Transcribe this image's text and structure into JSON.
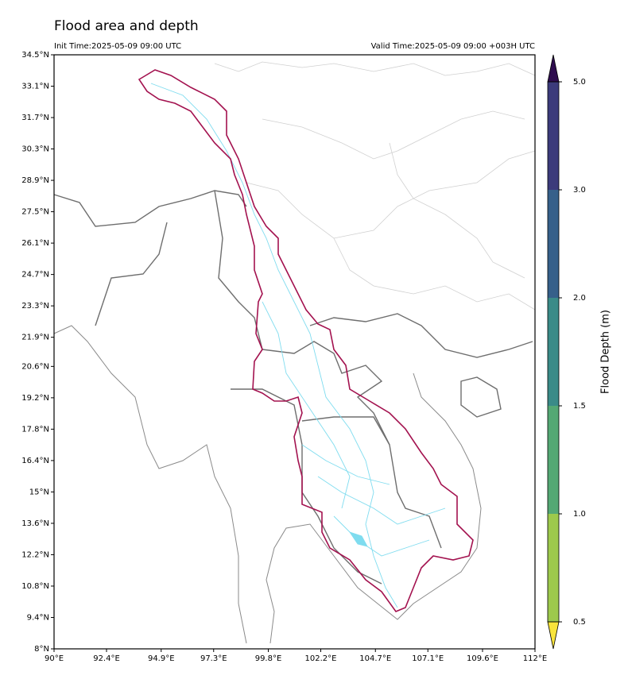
{
  "title": "Flood area and depth",
  "init_time": "Init Time:2025-05-09 09:00 UTC",
  "valid_time": "Valid Time:2025-05-09 09:00 +003H UTC",
  "map": {
    "xlim": [
      90,
      112
    ],
    "ylim": [
      8,
      34.5
    ],
    "xticks": [
      {
        "value": 90,
        "label": "90°E"
      },
      {
        "value": 92.4,
        "label": "92.4°E"
      },
      {
        "value": 94.9,
        "label": "94.9°E"
      },
      {
        "value": 97.3,
        "label": "97.3°E"
      },
      {
        "value": 99.8,
        "label": "99.8°E"
      },
      {
        "value": 102.2,
        "label": "102.2°E"
      },
      {
        "value": 104.7,
        "label": "104.7°E"
      },
      {
        "value": 107.1,
        "label": "107.1°E"
      },
      {
        "value": 109.6,
        "label": "109.6°E"
      },
      {
        "value": 112,
        "label": "112°E"
      }
    ],
    "yticks": [
      {
        "value": 34.5,
        "label": "34.5°N"
      },
      {
        "value": 33.1,
        "label": "33.1°N"
      },
      {
        "value": 31.7,
        "label": "31.7°N"
      },
      {
        "value": 30.3,
        "label": "30.3°N"
      },
      {
        "value": 28.9,
        "label": "28.9°N"
      },
      {
        "value": 27.5,
        "label": "27.5°N"
      },
      {
        "value": 26.1,
        "label": "26.1°N"
      },
      {
        "value": 24.7,
        "label": "24.7°N"
      },
      {
        "value": 23.3,
        "label": "23.3°N"
      },
      {
        "value": 21.9,
        "label": "21.9°N"
      },
      {
        "value": 20.6,
        "label": "20.6°N"
      },
      {
        "value": 19.2,
        "label": "19.2°N"
      },
      {
        "value": 17.8,
        "label": "17.8°N"
      },
      {
        "value": 16.4,
        "label": "16.4°N"
      },
      {
        "value": 15,
        "label": "15°N"
      },
      {
        "value": 13.6,
        "label": "13.6°N"
      },
      {
        "value": 12.2,
        "label": "12.2°N"
      },
      {
        "value": 10.8,
        "label": "10.8°N"
      },
      {
        "value": 9.4,
        "label": "9.4°N"
      },
      {
        "value": 8,
        "label": "8°N"
      }
    ]
  },
  "colorbar": {
    "label": "Flood Depth (m)",
    "levels": [
      0.5,
      {
        "value": 1,
        "label": "1.0"
      },
      1.5,
      {
        "value": 2,
        "label": "2.0"
      },
      {
        "value": 3,
        "label": "3.0"
      },
      {
        "value": 5,
        "label": "5.0"
      }
    ],
    "colors": [
      "#9dc94c",
      "#54a874",
      "#3a8b88",
      "#36608a",
      "#3c3b7b"
    ],
    "under_color": "#f9e43b",
    "over_color": "#2e0c4e"
  }
}
